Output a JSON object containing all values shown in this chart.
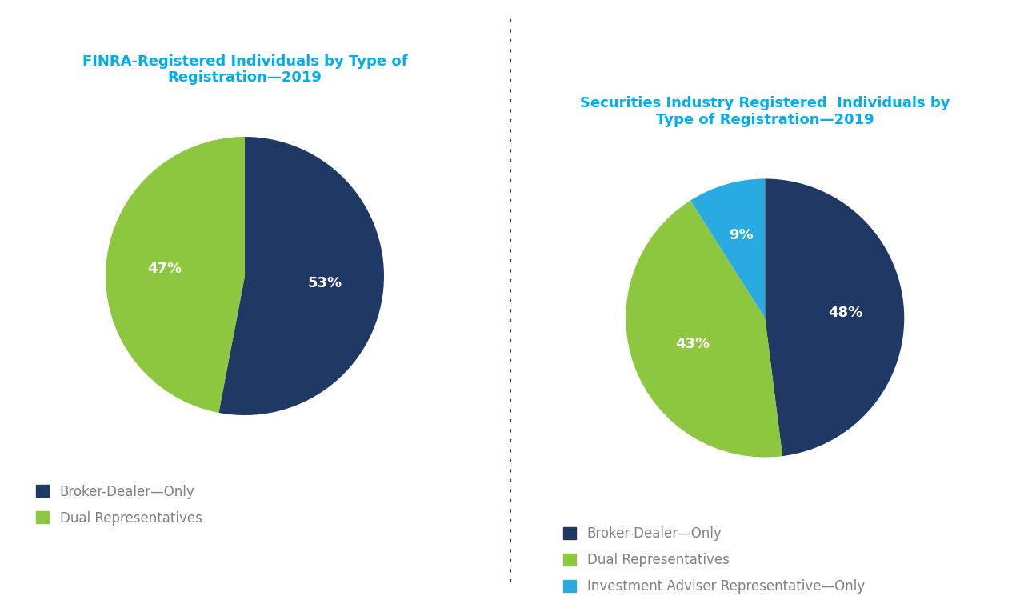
{
  "chart1": {
    "title": "FINRA-Registered Individuals by Type of\nRegistration—2019",
    "values": [
      53,
      47
    ],
    "labels": [
      "53%",
      "47%"
    ],
    "colors": [
      "#1f3864",
      "#8dc63f"
    ],
    "legend_labels": [
      "Broker-Dealer—Only",
      "Dual Representatives"
    ],
    "startangle": 90,
    "label_r": [
      0.58,
      0.58
    ]
  },
  "chart2": {
    "title": "Securities Industry Registered  Individuals by\nType of Registration—2019",
    "values": [
      48,
      43,
      9
    ],
    "labels": [
      "48%",
      "43%",
      "9%"
    ],
    "colors": [
      "#1f3864",
      "#8dc63f",
      "#29abe2"
    ],
    "legend_labels": [
      "Broker-Dealer—Only",
      "Dual Representatives",
      "Investment Adviser Representative—Only"
    ],
    "startangle": 90,
    "label_r": [
      0.58,
      0.55,
      0.62
    ]
  },
  "title_color": "#00aeef",
  "label_color": "#ffffff",
  "label_fontsize": 13,
  "title_fontsize": 13,
  "legend_fontsize": 12,
  "legend_text_color": "#808080",
  "background_color": "#ffffff",
  "divider_color": "#1f3864"
}
